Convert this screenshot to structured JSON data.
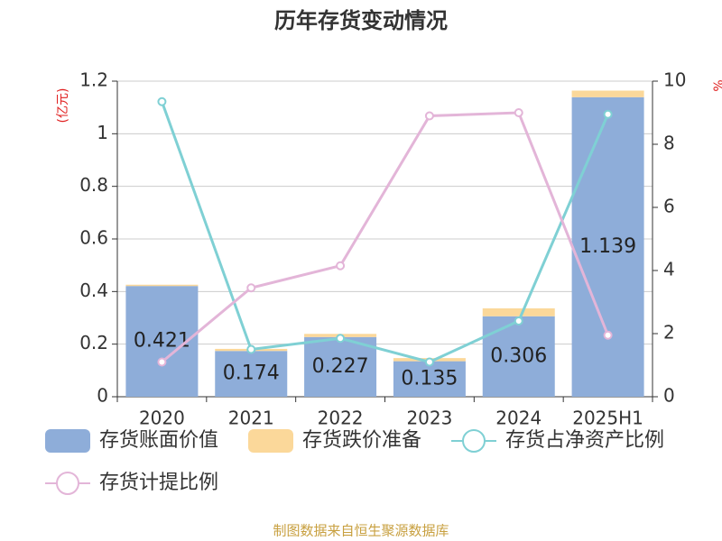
{
  "chart_data": {
    "type": "bar",
    "title": "历年存货变动情况",
    "ylabel": "(亿元)",
    "y2label": "%",
    "categories": [
      "2020",
      "2021",
      "2022",
      "2023",
      "2024",
      "2025H1"
    ],
    "series": [
      {
        "name": "存货账面价值",
        "type": "bar",
        "color": "#8eadd9",
        "values": [
          0.421,
          0.174,
          0.227,
          0.135,
          0.306,
          1.139
        ]
      },
      {
        "name": "存货跌价准备",
        "type": "bar",
        "color": "#fbd89a",
        "values": [
          0.005,
          0.008,
          0.012,
          0.012,
          0.03,
          0.025
        ]
      },
      {
        "name": "存货占净资产比例",
        "type": "line",
        "axis": "y2",
        "color": "#7fd0d4",
        "values": [
          9.35,
          1.5,
          1.85,
          1.1,
          2.4,
          8.95
        ]
      },
      {
        "name": "存货计提比例",
        "type": "line",
        "axis": "y2",
        "color": "#e3b5d8",
        "values": [
          1.1,
          3.45,
          4.15,
          8.9,
          9.0,
          1.95
        ]
      }
    ],
    "ylim": [
      0,
      1.2
    ],
    "yticks": [
      0,
      0.2,
      0.4,
      0.6,
      0.8,
      1,
      1.2
    ],
    "y2lim": [
      0,
      10
    ],
    "y2ticks": [
      0,
      2,
      4,
      6,
      8,
      10
    ],
    "grid": true,
    "footer": "制图数据来自恒生聚源数据库"
  }
}
